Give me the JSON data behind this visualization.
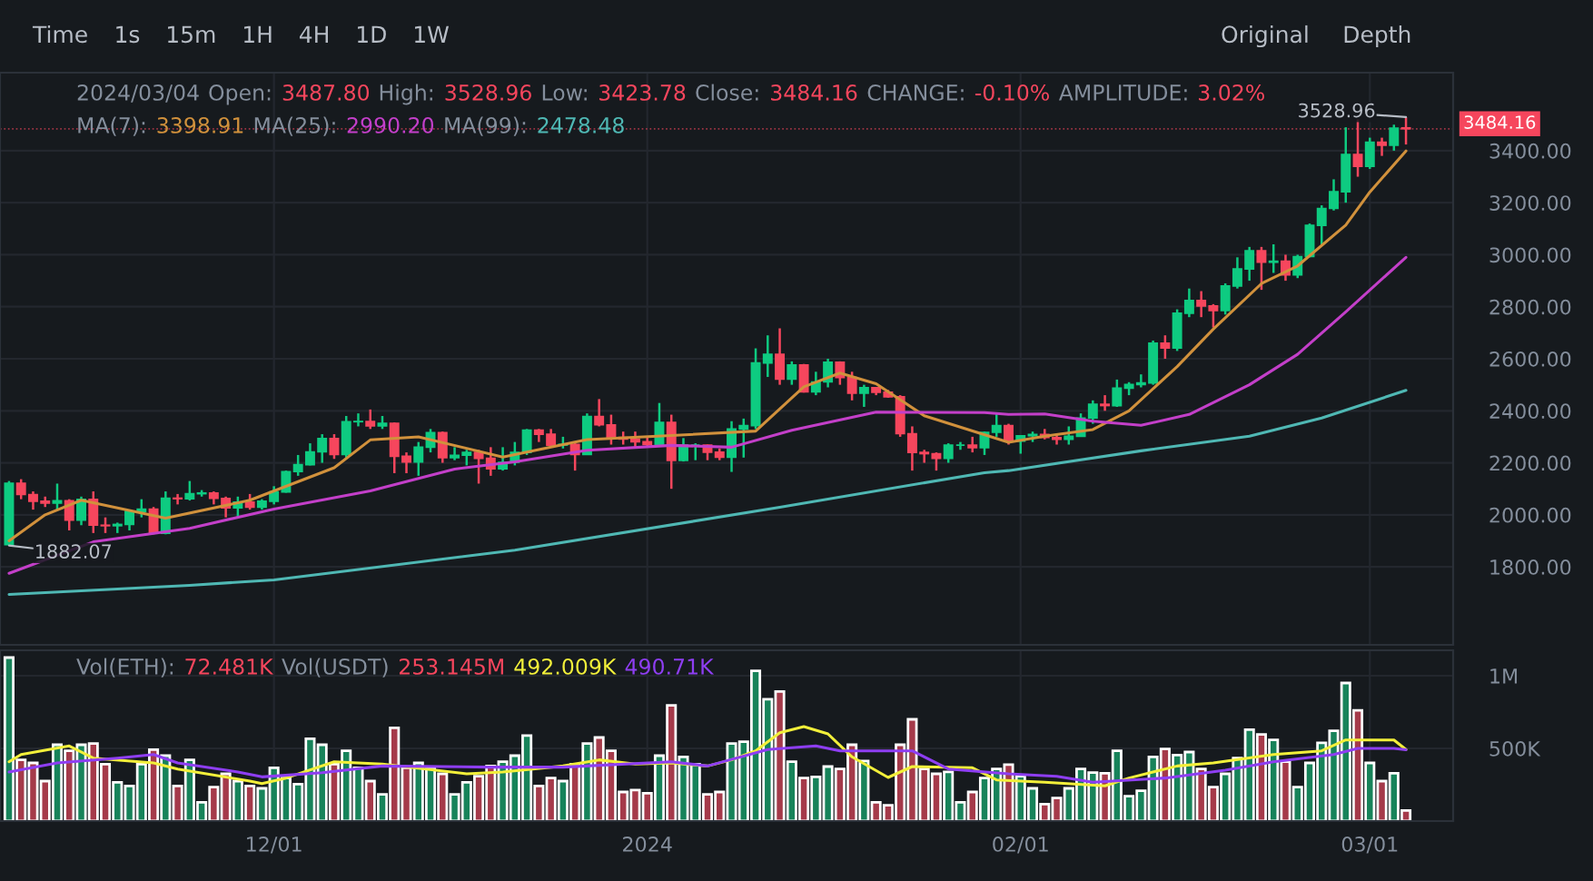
{
  "chart_data": [
    {
      "type": "candlestick",
      "x": [
        "2023-11-09",
        "2023-11-10",
        "2023-11-11",
        "2023-11-12",
        "2023-11-13",
        "2023-11-14",
        "2023-11-15",
        "2023-11-16",
        "2023-11-17",
        "2023-11-18",
        "2023-11-19",
        "2023-11-20",
        "2023-11-21",
        "2023-11-22",
        "2023-11-23",
        "2023-11-24",
        "2023-11-25",
        "2023-11-26",
        "2023-11-27",
        "2023-11-28",
        "2023-11-29",
        "2023-11-30",
        "2023-12-01",
        "2023-12-02",
        "2023-12-03",
        "2023-12-04",
        "2023-12-05",
        "2023-12-06",
        "2023-12-07",
        "2023-12-08",
        "2023-12-09",
        "2023-12-10",
        "2023-12-11",
        "2023-12-12",
        "2023-12-13",
        "2023-12-14",
        "2023-12-15",
        "2023-12-16",
        "2023-12-17",
        "2023-12-18",
        "2023-12-19",
        "2023-12-20",
        "2023-12-21",
        "2023-12-22",
        "2023-12-23",
        "2023-12-24",
        "2023-12-25",
        "2023-12-26",
        "2023-12-27",
        "2023-12-28",
        "2023-12-29",
        "2023-12-30",
        "2023-12-31",
        "2024-01-01",
        "2024-01-02",
        "2024-01-03",
        "2024-01-04",
        "2024-01-05",
        "2024-01-06",
        "2024-01-07",
        "2024-01-08",
        "2024-01-09",
        "2024-01-10",
        "2024-01-11",
        "2024-01-12",
        "2024-01-13",
        "2024-01-14",
        "2024-01-15",
        "2024-01-16",
        "2024-01-17",
        "2024-01-18",
        "2024-01-19",
        "2024-01-20",
        "2024-01-21",
        "2024-01-22",
        "2024-01-23",
        "2024-01-24",
        "2024-01-25",
        "2024-01-26",
        "2024-01-27",
        "2024-01-28",
        "2024-01-29",
        "2024-01-30",
        "2024-01-31",
        "2024-02-01",
        "2024-02-02",
        "2024-02-03",
        "2024-02-04",
        "2024-02-05",
        "2024-02-06",
        "2024-02-07",
        "2024-02-08",
        "2024-02-09",
        "2024-02-10",
        "2024-02-11",
        "2024-02-12",
        "2024-02-13",
        "2024-02-14",
        "2024-02-15",
        "2024-02-16",
        "2024-02-17",
        "2024-02-18",
        "2024-02-19",
        "2024-02-20",
        "2024-02-21",
        "2024-02-22",
        "2024-02-23",
        "2024-02-24",
        "2024-02-25",
        "2024-02-26",
        "2024-02-27",
        "2024-02-28",
        "2024-02-29",
        "2024-03-01",
        "2024-03-02",
        "2024-03-03",
        "2024-03-04"
      ],
      "ohlc": [
        [
          1885,
          2130,
          1882,
          2121
        ],
        [
          2121,
          2137,
          2060,
          2078
        ],
        [
          2078,
          2090,
          2020,
          2052
        ],
        [
          2052,
          2070,
          2030,
          2045
        ],
        [
          2045,
          2120,
          2020,
          2054
        ],
        [
          2054,
          2060,
          1940,
          1980
        ],
        [
          1980,
          2070,
          1960,
          2059
        ],
        [
          2059,
          2090,
          1930,
          1960
        ],
        [
          1960,
          1990,
          1930,
          1958
        ],
        [
          1958,
          1970,
          1930,
          1963
        ],
        [
          1963,
          2020,
          1940,
          2013
        ],
        [
          2013,
          2060,
          1990,
          2022
        ],
        [
          2022,
          2030,
          1925,
          1929
        ],
        [
          1929,
          2090,
          1925,
          2064
        ],
        [
          2064,
          2080,
          2040,
          2062
        ],
        [
          2062,
          2130,
          2055,
          2081
        ],
        [
          2081,
          2095,
          2070,
          2084
        ],
        [
          2084,
          2090,
          2040,
          2063
        ],
        [
          2063,
          2070,
          1990,
          2027
        ],
        [
          2027,
          2070,
          1990,
          2049
        ],
        [
          2049,
          2080,
          2020,
          2029
        ],
        [
          2029,
          2060,
          2020,
          2052
        ],
        [
          2052,
          2110,
          2040,
          2088
        ],
        [
          2088,
          2170,
          2085,
          2166
        ],
        [
          2166,
          2230,
          2150,
          2193
        ],
        [
          2193,
          2275,
          2190,
          2242
        ],
        [
          2242,
          2310,
          2200,
          2293
        ],
        [
          2293,
          2310,
          2215,
          2232
        ],
        [
          2232,
          2380,
          2220,
          2358
        ],
        [
          2358,
          2390,
          2340,
          2359
        ],
        [
          2359,
          2405,
          2330,
          2342
        ],
        [
          2342,
          2380,
          2330,
          2352
        ],
        [
          2352,
          2355,
          2160,
          2225
        ],
        [
          2225,
          2240,
          2160,
          2203
        ],
        [
          2203,
          2280,
          2150,
          2260
        ],
        [
          2260,
          2330,
          2240,
          2316
        ],
        [
          2316,
          2320,
          2200,
          2220
        ],
        [
          2220,
          2260,
          2210,
          2229
        ],
        [
          2229,
          2250,
          2190,
          2240
        ],
        [
          2240,
          2250,
          2120,
          2217
        ],
        [
          2217,
          2260,
          2150,
          2177
        ],
        [
          2177,
          2260,
          2170,
          2202
        ],
        [
          2202,
          2280,
          2190,
          2240
        ],
        [
          2240,
          2330,
          2230,
          2326
        ],
        [
          2326,
          2330,
          2280,
          2310
        ],
        [
          2310,
          2330,
          2260,
          2268
        ],
        [
          2268,
          2300,
          2255,
          2271
        ],
        [
          2271,
          2280,
          2170,
          2232
        ],
        [
          2232,
          2390,
          2230,
          2378
        ],
        [
          2378,
          2445,
          2340,
          2346
        ],
        [
          2346,
          2385,
          2270,
          2298
        ],
        [
          2298,
          2320,
          2270,
          2291
        ],
        [
          2291,
          2320,
          2260,
          2281
        ],
        [
          2281,
          2300,
          2260,
          2270
        ],
        [
          2270,
          2430,
          2265,
          2355
        ],
        [
          2355,
          2385,
          2100,
          2209
        ],
        [
          2209,
          2295,
          2205,
          2268
        ],
        [
          2268,
          2275,
          2210,
          2268
        ],
        [
          2268,
          2270,
          2210,
          2241
        ],
        [
          2241,
          2255,
          2210,
          2221
        ],
        [
          2221,
          2360,
          2165,
          2330
        ],
        [
          2330,
          2370,
          2220,
          2343
        ],
        [
          2343,
          2640,
          2330,
          2584
        ],
        [
          2584,
          2690,
          2530,
          2617
        ],
        [
          2617,
          2717,
          2500,
          2522
        ],
        [
          2522,
          2590,
          2500,
          2576
        ],
        [
          2576,
          2580,
          2470,
          2473
        ],
        [
          2473,
          2550,
          2460,
          2511
        ],
        [
          2511,
          2600,
          2490,
          2587
        ],
        [
          2587,
          2590,
          2500,
          2528
        ],
        [
          2528,
          2550,
          2440,
          2468
        ],
        [
          2468,
          2500,
          2415,
          2489
        ],
        [
          2489,
          2490,
          2460,
          2471
        ],
        [
          2471,
          2480,
          2450,
          2454
        ],
        [
          2454,
          2460,
          2300,
          2312
        ],
        [
          2312,
          2340,
          2170,
          2240
        ],
        [
          2240,
          2250,
          2200,
          2235
        ],
        [
          2235,
          2240,
          2170,
          2217
        ],
        [
          2217,
          2275,
          2200,
          2268
        ],
        [
          2268,
          2280,
          2250,
          2268
        ],
        [
          2268,
          2300,
          2240,
          2258
        ],
        [
          2258,
          2320,
          2230,
          2317
        ],
        [
          2317,
          2390,
          2300,
          2343
        ],
        [
          2343,
          2350,
          2270,
          2283
        ],
        [
          2283,
          2305,
          2235,
          2304
        ],
        [
          2304,
          2320,
          2280,
          2309
        ],
        [
          2309,
          2330,
          2290,
          2297
        ],
        [
          2297,
          2310,
          2270,
          2290
        ],
        [
          2290,
          2340,
          2270,
          2302
        ],
        [
          2302,
          2390,
          2300,
          2372
        ],
        [
          2372,
          2440,
          2350,
          2425
        ],
        [
          2425,
          2460,
          2400,
          2420
        ],
        [
          2420,
          2520,
          2415,
          2487
        ],
        [
          2487,
          2510,
          2460,
          2501
        ],
        [
          2501,
          2540,
          2490,
          2507
        ],
        [
          2507,
          2670,
          2500,
          2660
        ],
        [
          2660,
          2690,
          2600,
          2641
        ],
        [
          2641,
          2790,
          2630,
          2775
        ],
        [
          2775,
          2870,
          2760,
          2824
        ],
        [
          2824,
          2860,
          2760,
          2803
        ],
        [
          2803,
          2810,
          2720,
          2785
        ],
        [
          2785,
          2890,
          2770,
          2880
        ],
        [
          2880,
          2990,
          2870,
          2945
        ],
        [
          2945,
          3030,
          2900,
          3015
        ],
        [
          3015,
          3030,
          2865,
          2971
        ],
        [
          2971,
          3040,
          2930,
          2975
        ],
        [
          2975,
          3000,
          2900,
          2922
        ],
        [
          2922,
          3000,
          2910,
          2993
        ],
        [
          2993,
          3120,
          2990,
          3113
        ],
        [
          3113,
          3190,
          3040,
          3178
        ],
        [
          3178,
          3290,
          3170,
          3242
        ],
        [
          3242,
          3490,
          3200,
          3385
        ],
        [
          3385,
          3520,
          3300,
          3340
        ],
        [
          3340,
          3450,
          3330,
          3433
        ],
        [
          3433,
          3450,
          3380,
          3421
        ],
        [
          3421,
          3500,
          3400,
          3487
        ],
        [
          3487.8,
          3528.96,
          3423.78,
          3484.16
        ]
      ],
      "colors": [
        "#0ecb81",
        "#f6465d",
        "#f6465d",
        "#f6465d",
        "#0ecb81",
        "#f6465d",
        "#0ecb81",
        "#f6465d",
        "#f6465d",
        "#0ecb81",
        "#0ecb81",
        "#0ecb81",
        "#f6465d",
        "#0ecb81",
        "#f6465d",
        "#0ecb81",
        "#0ecb81",
        "#f6465d",
        "#f6465d",
        "#0ecb81",
        "#f6465d",
        "#0ecb81",
        "#0ecb81",
        "#0ecb81",
        "#0ecb81",
        "#0ecb81",
        "#0ecb81",
        "#f6465d",
        "#0ecb81",
        "#0ecb81",
        "#f6465d",
        "#0ecb81",
        "#f6465d",
        "#f6465d",
        "#0ecb81",
        "#0ecb81",
        "#f6465d",
        "#0ecb81",
        "#0ecb81",
        "#f6465d",
        "#f6465d",
        "#0ecb81",
        "#0ecb81",
        "#0ecb81",
        "#f6465d",
        "#f6465d",
        "#0ecb81",
        "#f6465d",
        "#0ecb81",
        "#f6465d",
        "#f6465d",
        "#f6465d",
        "#f6465d",
        "#f6465d",
        "#0ecb81",
        "#f6465d",
        "#0ecb81",
        "#0ecb81",
        "#f6465d",
        "#f6465d",
        "#0ecb81",
        "#0ecb81",
        "#0ecb81",
        "#0ecb81",
        "#f6465d",
        "#0ecb81",
        "#f6465d",
        "#0ecb81",
        "#0ecb81",
        "#f6465d",
        "#f6465d",
        "#0ecb81",
        "#f6465d",
        "#f6465d",
        "#f6465d",
        "#f6465d",
        "#f6465d",
        "#f6465d",
        "#0ecb81",
        "#0ecb81",
        "#f6465d",
        "#0ecb81",
        "#0ecb81",
        "#f6465d",
        "#0ecb81",
        "#0ecb81",
        "#f6465d",
        "#f6465d",
        "#0ecb81",
        "#0ecb81",
        "#0ecb81",
        "#f6465d",
        "#0ecb81",
        "#0ecb81",
        "#0ecb81",
        "#0ecb81",
        "#f6465d",
        "#0ecb81",
        "#0ecb81",
        "#f6465d",
        "#f6465d",
        "#0ecb81",
        "#0ecb81",
        "#0ecb81",
        "#f6465d",
        "#0ecb81",
        "#f6465d",
        "#0ecb81",
        "#0ecb81",
        "#0ecb81",
        "#0ecb81",
        "#0ecb81",
        "#f6465d",
        "#0ecb81",
        "#f6465d",
        "#0ecb81",
        "#f6465d"
      ],
      "series": [
        {
          "type": "line",
          "color": "#d1913c",
          "x": [
            "2023-11-09",
            "2023-11-12",
            "2023-11-15",
            "2023-11-22",
            "2023-11-29",
            "2023-12-06",
            "2023-12-09",
            "2023-12-13",
            "2023-12-20",
            "2023-12-27",
            "2024-01-03",
            "2024-01-10",
            "2024-01-14",
            "2024-01-17",
            "2024-01-20",
            "2024-01-24",
            "2024-01-31",
            "2024-02-03",
            "2024-02-07",
            "2024-02-10",
            "2024-02-14",
            "2024-02-17",
            "2024-02-21",
            "2024-02-24",
            "2024-02-28",
            "2024-03-01",
            "2024-03-04"
          ],
          "values": [
            1900,
            2000,
            2056,
            1987,
            2056,
            2181,
            2288,
            2300,
            2222,
            2289,
            2305,
            2322,
            2492,
            2545,
            2504,
            2381,
            2279,
            2302,
            2328,
            2400,
            2570,
            2714,
            2889,
            2957,
            3114,
            3241,
            3398.91
          ]
        },
        {
          "type": "line",
          "color": "#c33fc9",
          "x": [
            "2023-11-09",
            "2023-11-16",
            "2023-11-24",
            "2023-12-01",
            "2023-12-09",
            "2023-12-16",
            "2023-12-21",
            "2023-12-27",
            "2024-01-03",
            "2024-01-08",
            "2024-01-13",
            "2024-01-20",
            "2024-01-29",
            "2024-01-31",
            "2024-02-03",
            "2024-02-07",
            "2024-02-11",
            "2024-02-15",
            "2024-02-20",
            "2024-02-24",
            "2024-02-28",
            "2024-03-04"
          ],
          "values": [
            1775,
            1896,
            1948,
            2022,
            2092,
            2176,
            2204,
            2248,
            2267,
            2260,
            2325,
            2395,
            2393,
            2386,
            2388,
            2360,
            2344,
            2386,
            2500,
            2617,
            2780,
            2990.2
          ]
        },
        {
          "type": "line",
          "color": "#4fb8b4",
          "x": [
            "2023-11-09",
            "2023-11-24",
            "2023-12-01",
            "2023-12-21",
            "2024-01-12",
            "2024-01-29",
            "2024-01-31",
            "2024-02-11",
            "2024-02-20",
            "2024-02-26",
            "2024-03-04"
          ],
          "values": [
            1694,
            1729,
            1750,
            1864,
            2029,
            2162,
            2170,
            2246,
            2302,
            2372,
            2478.48
          ]
        }
      ],
      "xlim": [
        "2023-11-08T06:00",
        "2024-03-07T22:00"
      ],
      "xticks": [
        {
          "value": "2023-12-01",
          "label": null
        },
        {
          "value": "2024-01-01",
          "label": null
        },
        {
          "value": "2024-02-01",
          "label": null
        },
        {
          "value": "2024-03-01",
          "label": null
        }
      ],
      "ylim": [
        1500,
        3700
      ],
      "yticks": [
        {
          "value": 1800,
          "label": "1800.00"
        },
        {
          "value": 2000,
          "label": "2000.00"
        },
        {
          "value": 2200,
          "label": "2200.00"
        },
        {
          "value": 2400,
          "label": "2400.00"
        },
        {
          "value": 2600,
          "label": "2600.00"
        },
        {
          "value": 2800,
          "label": "2800.00"
        },
        {
          "value": 3000,
          "label": "3000.00"
        },
        {
          "value": 3200,
          "label": "3200.00"
        },
        {
          "value": 3400,
          "label": "3400.00"
        }
      ],
      "grid": true,
      "tick_labels": "y",
      "ref_lines": [
        {
          "axis": "y",
          "value": 3484.16,
          "label": "3484.16",
          "color": "#f6465d"
        }
      ],
      "annotations": [
        "Time",
        "1s",
        "15m",
        "1H",
        "4H",
        "1D",
        "1W",
        "Original",
        "Depth",
        "2024/03/04",
        "Open:",
        "3487.80",
        "High:",
        "3528.96",
        "Low:",
        "3423.78",
        "Close:",
        "3484.16",
        "CHANGE:",
        "-0.10%",
        "AMPLITUDE:",
        "3.02%",
        "MA(7):",
        "3398.91",
        "MA(25):",
        "2990.20",
        "MA(99):",
        "2478.48",
        {
          "text": "3528.96",
          "x": "2024-03-04",
          "y": 3528.96
        },
        {
          "text": "1882.07",
          "x": "2023-11-09",
          "y": 1882.07
        }
      ]
    },
    {
      "type": "bar",
      "x": [
        "2023-11-09",
        "2023-11-10",
        "2023-11-11",
        "2023-11-12",
        "2023-11-13",
        "2023-11-14",
        "2023-11-15",
        "2023-11-16",
        "2023-11-17",
        "2023-11-18",
        "2023-11-19",
        "2023-11-20",
        "2023-11-21",
        "2023-11-22",
        "2023-11-23",
        "2023-11-24",
        "2023-11-25",
        "2023-11-26",
        "2023-11-27",
        "2023-11-28",
        "2023-11-29",
        "2023-11-30",
        "2023-12-01",
        "2023-12-02",
        "2023-12-03",
        "2023-12-04",
        "2023-12-05",
        "2023-12-06",
        "2023-12-07",
        "2023-12-08",
        "2023-12-09",
        "2023-12-10",
        "2023-12-11",
        "2023-12-12",
        "2023-12-13",
        "2023-12-14",
        "2023-12-15",
        "2023-12-16",
        "2023-12-17",
        "2023-12-18",
        "2023-12-19",
        "2023-12-20",
        "2023-12-21",
        "2023-12-22",
        "2023-12-23",
        "2023-12-24",
        "2023-12-25",
        "2023-12-26",
        "2023-12-27",
        "2023-12-28",
        "2023-12-29",
        "2023-12-30",
        "2023-12-31",
        "2024-01-01",
        "2024-01-02",
        "2024-01-03",
        "2024-01-04",
        "2024-01-05",
        "2024-01-06",
        "2024-01-07",
        "2024-01-08",
        "2024-01-09",
        "2024-01-10",
        "2024-01-11",
        "2024-01-12",
        "2024-01-13",
        "2024-01-14",
        "2024-01-15",
        "2024-01-16",
        "2024-01-17",
        "2024-01-18",
        "2024-01-19",
        "2024-01-20",
        "2024-01-21",
        "2024-01-22",
        "2024-01-23",
        "2024-01-24",
        "2024-01-25",
        "2024-01-26",
        "2024-01-27",
        "2024-01-28",
        "2024-01-29",
        "2024-01-30",
        "2024-01-31",
        "2024-02-01",
        "2024-02-02",
        "2024-02-03",
        "2024-02-04",
        "2024-02-05",
        "2024-02-06",
        "2024-02-07",
        "2024-02-08",
        "2024-02-09",
        "2024-02-10",
        "2024-02-11",
        "2024-02-12",
        "2024-02-13",
        "2024-02-14",
        "2024-02-15",
        "2024-02-16",
        "2024-02-17",
        "2024-02-18",
        "2024-02-19",
        "2024-02-20",
        "2024-02-21",
        "2024-02-22",
        "2024-02-23",
        "2024-02-24",
        "2024-02-25",
        "2024-02-26",
        "2024-02-27",
        "2024-02-28",
        "2024-02-29",
        "2024-03-01",
        "2024-03-02",
        "2024-03-03",
        "2024-03-04"
      ],
      "values": [
        1125000,
        421000,
        400000,
        275000,
        525000,
        483000,
        525000,
        533000,
        392000,
        267000,
        242000,
        392000,
        492000,
        450000,
        242000,
        421000,
        129000,
        233000,
        325000,
        275000,
        242000,
        225000,
        367000,
        296000,
        254000,
        567000,
        525000,
        392000,
        483000,
        367000,
        275000,
        183000,
        642000,
        367000,
        400000,
        367000,
        325000,
        183000,
        267000,
        308000,
        379000,
        408000,
        450000,
        588000,
        242000,
        296000,
        275000,
        392000,
        533000,
        575000,
        483000,
        200000,
        213000,
        192000,
        450000,
        796000,
        442000,
        392000,
        183000,
        200000,
        533000,
        546000,
        1033000,
        838000,
        892000,
        408000,
        296000,
        304000,
        375000,
        358000,
        525000,
        413000,
        129000,
        108000,
        525000,
        700000,
        358000,
        325000,
        338000,
        129000,
        200000,
        296000,
        358000,
        388000,
        308000,
        225000,
        117000,
        158000,
        225000,
        358000,
        333000,
        329000,
        483000,
        171000,
        208000,
        442000,
        496000,
        454000,
        475000,
        358000,
        233000,
        325000,
        433000,
        629000,
        596000,
        558000,
        408000,
        233000,
        400000,
        538000,
        621000,
        950000,
        762000,
        400000,
        275000,
        329000,
        72481
      ],
      "colors": [
        "#17835a",
        "#a53a4a",
        "#a53a4a",
        "#a53a4a",
        "#17835a",
        "#a53a4a",
        "#17835a",
        "#a53a4a",
        "#a53a4a",
        "#17835a",
        "#17835a",
        "#17835a",
        "#a53a4a",
        "#17835a",
        "#a53a4a",
        "#17835a",
        "#17835a",
        "#a53a4a",
        "#a53a4a",
        "#17835a",
        "#a53a4a",
        "#17835a",
        "#17835a",
        "#17835a",
        "#17835a",
        "#17835a",
        "#17835a",
        "#a53a4a",
        "#17835a",
        "#17835a",
        "#a53a4a",
        "#17835a",
        "#a53a4a",
        "#a53a4a",
        "#17835a",
        "#17835a",
        "#a53a4a",
        "#17835a",
        "#17835a",
        "#a53a4a",
        "#a53a4a",
        "#17835a",
        "#17835a",
        "#17835a",
        "#a53a4a",
        "#a53a4a",
        "#17835a",
        "#a53a4a",
        "#17835a",
        "#a53a4a",
        "#a53a4a",
        "#a53a4a",
        "#a53a4a",
        "#a53a4a",
        "#17835a",
        "#a53a4a",
        "#17835a",
        "#17835a",
        "#a53a4a",
        "#a53a4a",
        "#17835a",
        "#17835a",
        "#17835a",
        "#17835a",
        "#a53a4a",
        "#17835a",
        "#a53a4a",
        "#17835a",
        "#17835a",
        "#a53a4a",
        "#a53a4a",
        "#17835a",
        "#a53a4a",
        "#a53a4a",
        "#a53a4a",
        "#a53a4a",
        "#a53a4a",
        "#a53a4a",
        "#17835a",
        "#17835a",
        "#a53a4a",
        "#17835a",
        "#17835a",
        "#a53a4a",
        "#17835a",
        "#17835a",
        "#a53a4a",
        "#a53a4a",
        "#17835a",
        "#17835a",
        "#17835a",
        "#a53a4a",
        "#17835a",
        "#17835a",
        "#17835a",
        "#17835a",
        "#a53a4a",
        "#17835a",
        "#17835a",
        "#a53a4a",
        "#a53a4a",
        "#17835a",
        "#17835a",
        "#17835a",
        "#a53a4a",
        "#17835a",
        "#a53a4a",
        "#17835a",
        "#17835a",
        "#17835a",
        "#17835a",
        "#17835a",
        "#a53a4a",
        "#17835a",
        "#a53a4a",
        "#17835a",
        "#a53a4a"
      ],
      "series": [
        {
          "type": "line",
          "color": "#f2ef3a",
          "x": [
            "2023-11-09",
            "2023-11-10",
            "2023-11-14",
            "2023-11-16",
            "2023-11-21",
            "2023-11-23",
            "2023-11-29",
            "2023-11-30",
            "2023-12-02",
            "2023-12-06",
            "2023-12-10",
            "2023-12-17",
            "2023-12-20",
            "2023-12-25",
            "2023-12-28",
            "2023-12-31",
            "2024-01-03",
            "2024-01-06",
            "2024-01-08",
            "2024-01-10",
            "2024-01-12",
            "2024-01-14",
            "2024-01-16",
            "2024-01-18",
            "2024-01-21",
            "2024-01-23",
            "2024-01-28",
            "2024-01-30",
            "2024-02-03",
            "2024-02-08",
            "2024-02-10",
            "2024-02-14",
            "2024-02-17",
            "2024-02-22",
            "2024-02-26",
            "2024-02-28",
            "2024-03-03",
            "2024-03-04"
          ],
          "values": [
            408000,
            458000,
            517000,
            433000,
            400000,
            358000,
            275000,
            258000,
            296000,
            408000,
            392000,
            325000,
            338000,
            379000,
            421000,
            392000,
            400000,
            379000,
            421000,
            483000,
            608000,
            650000,
            600000,
            442000,
            300000,
            375000,
            367000,
            283000,
            267000,
            242000,
            296000,
            379000,
            400000,
            458000,
            483000,
            558000,
            558000,
            492009
          ]
        },
        {
          "type": "line",
          "color": "#8e3ef2",
          "x": [
            "2023-11-09",
            "2023-11-13",
            "2023-11-18",
            "2023-11-21",
            "2023-11-23",
            "2023-11-28",
            "2023-11-30",
            "2023-12-05",
            "2023-12-10",
            "2023-12-19",
            "2023-12-25",
            "2024-01-03",
            "2024-01-06",
            "2024-01-11",
            "2024-01-15",
            "2024-01-17",
            "2024-01-23",
            "2024-01-26",
            "2024-01-31",
            "2024-02-04",
            "2024-02-07",
            "2024-02-13",
            "2024-02-18",
            "2024-02-22",
            "2024-02-27",
            "2024-02-29",
            "2024-03-03",
            "2024-03-04"
          ],
          "values": [
            338000,
            400000,
            433000,
            458000,
            400000,
            338000,
            304000,
            333000,
            379000,
            371000,
            371000,
            408000,
            379000,
            492000,
            517000,
            483000,
            483000,
            358000,
            325000,
            308000,
            267000,
            296000,
            350000,
            408000,
            458000,
            500000,
            500000,
            490710
          ]
        }
      ],
      "xlim": [
        "2023-11-08T06:00",
        "2024-03-07T22:00"
      ],
      "xticks": [
        {
          "value": "2023-12-01",
          "label": "12/01"
        },
        {
          "value": "2024-01-01",
          "label": "2024"
        },
        {
          "value": "2024-02-01",
          "label": "02/01"
        },
        {
          "value": "2024-03-01",
          "label": "03/01"
        }
      ],
      "ylim": [
        0,
        1175000
      ],
      "yticks": [
        {
          "value": 500000,
          "label": "500K"
        },
        {
          "value": 1000000,
          "label": "1M"
        }
      ],
      "grid": true,
      "annotations": [
        "Vol(ETH):",
        "72.481K",
        "Vol(USDT)",
        "253.145M",
        "492.009K",
        "490.71K"
      ]
    }
  ]
}
